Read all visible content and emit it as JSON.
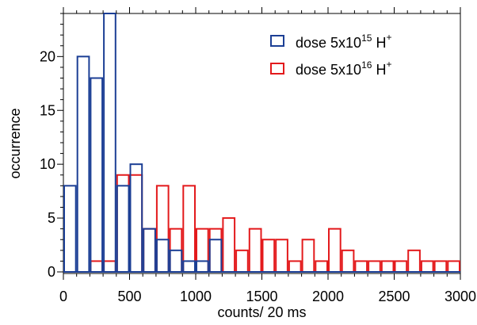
{
  "chart_data": {
    "type": "bar",
    "title": "",
    "xlabel": "counts/ 20 ms",
    "ylabel": "occurrence",
    "xlim": [
      0,
      3000
    ],
    "ylim": [
      0,
      24
    ],
    "bin_width": 100,
    "x_ticks": [
      0,
      500,
      1000,
      1500,
      2000,
      2500,
      3000
    ],
    "y_ticks": [
      0,
      5,
      10,
      15,
      20
    ],
    "grid": false,
    "legend_position": "top-right",
    "bin_starts": [
      0,
      100,
      200,
      300,
      400,
      500,
      600,
      700,
      800,
      900,
      1000,
      1100,
      1200,
      1300,
      1400,
      1500,
      1600,
      1700,
      1800,
      1900,
      2000,
      2100,
      2200,
      2300,
      2400,
      2500,
      2600,
      2700,
      2800,
      2900
    ],
    "series": [
      {
        "legend_main": "dose 5x10",
        "legend_exp": "15",
        "legend_suffix": " H",
        "legend_sup2": "+",
        "color": "#1c3f95",
        "values": [
          8,
          20,
          18,
          24,
          8,
          10,
          4,
          3,
          2,
          1,
          1,
          3,
          0,
          0,
          0,
          0,
          0,
          0,
          0,
          0,
          0,
          0,
          0,
          0,
          0,
          0,
          0,
          0,
          0,
          0
        ]
      },
      {
        "legend_main": "dose 5x10",
        "legend_exp": "16",
        "legend_suffix": " H",
        "legend_sup2": "+",
        "color": "#e31a1c",
        "values": [
          0,
          0,
          1,
          1,
          9,
          9,
          4,
          8,
          4,
          8,
          4,
          4,
          5,
          2,
          4,
          3,
          3,
          1,
          3,
          1,
          4,
          2,
          1,
          1,
          1,
          1,
          2,
          1,
          1,
          1
        ]
      }
    ]
  }
}
